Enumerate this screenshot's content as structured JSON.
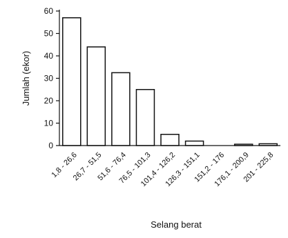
{
  "chart_data": {
    "type": "bar",
    "categories": [
      "1,8 - 26,6",
      "26,7 - 51,5",
      "51,6 - 76,4",
      "76,5 - 101,3",
      "101,4 - 126,2",
      "126,3 - 151,1",
      "151,2 - 176",
      "176,1 - 200,9",
      "201 - 225,8"
    ],
    "values": [
      57,
      44,
      32.5,
      25,
      5,
      2,
      0,
      0.6,
      0.8
    ],
    "xlabel": "Selang berat",
    "ylabel": "Jumlah (ekor)",
    "ylim": [
      0,
      60
    ],
    "yticks": [
      0,
      10,
      20,
      30,
      40,
      50,
      60
    ],
    "grid": false,
    "colors": {
      "bar_fill": "#ffffff",
      "bar_stroke": "#111111",
      "axis": "#111111"
    }
  }
}
